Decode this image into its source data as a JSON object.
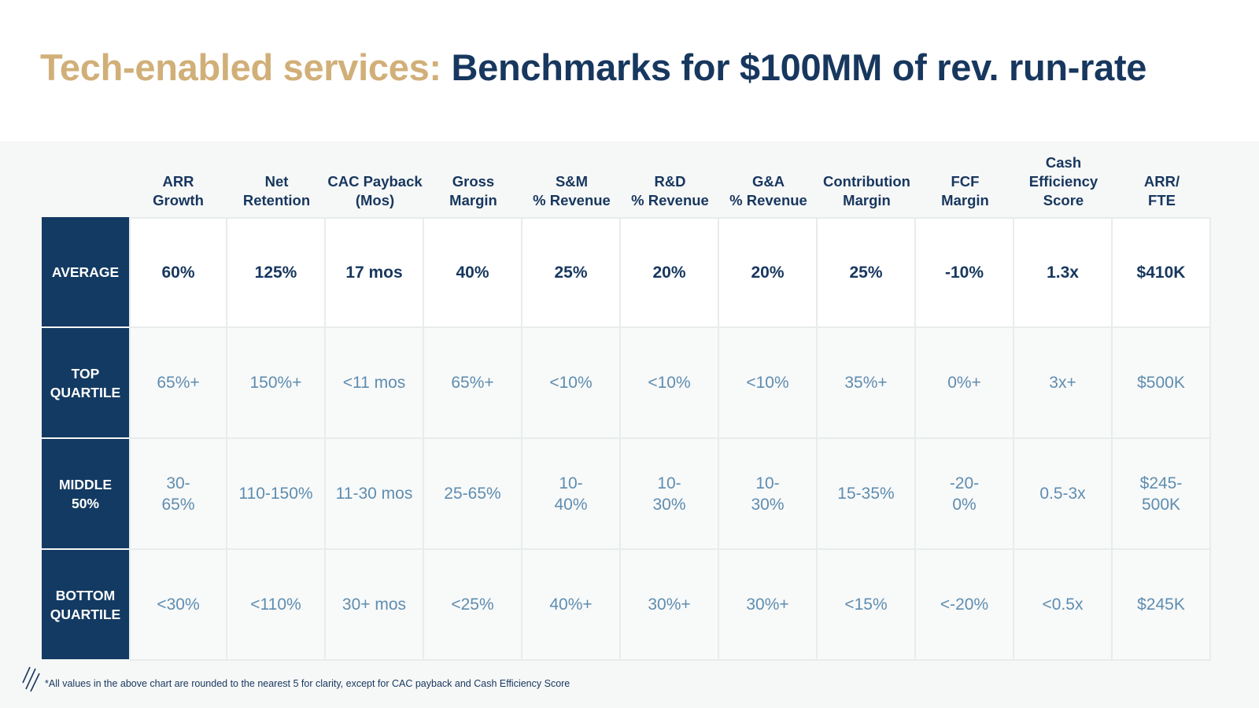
{
  "title": {
    "accent": "Tech-enabled services:",
    "main": "Benchmarks for $100MM of rev. run-rate"
  },
  "columns": [
    "ARR\nGrowth",
    "Net\nRetention",
    "CAC Payback\n(Mos)",
    "Gross\nMargin",
    "S&M\n% Revenue",
    "R&D\n% Revenue",
    "G&A\n% Revenue",
    "Contribution\nMargin",
    "FCF\nMargin",
    "Cash\nEfficiency\nScore",
    "ARR/\nFTE"
  ],
  "rows": [
    {
      "label": "AVERAGE",
      "values": [
        "60%",
        "125%",
        "17 mos",
        "40%",
        "25%",
        "20%",
        "20%",
        "25%",
        "-10%",
        "1.3x",
        "$410K"
      ]
    },
    {
      "label": "TOP\nQUARTILE",
      "values": [
        "65%+",
        "150%+",
        "<11 mos",
        "65%+",
        "<10%",
        "<10%",
        "<10%",
        "35%+",
        "0%+",
        "3x+",
        "$500K"
      ]
    },
    {
      "label": "MIDDLE\n50%",
      "values": [
        "30-\n65%",
        "110-150%",
        "11-30 mos",
        "25-65%",
        "10-\n40%",
        "10-\n30%",
        "10-\n30%",
        "15-35%",
        "-20-\n0%",
        "0.5-3x",
        "$245-\n500K"
      ]
    },
    {
      "label": "BOTTOM\nQUARTILE",
      "values": [
        "<30%",
        "<110%",
        "30+ mos",
        "<25%",
        "40%+",
        "30%+",
        "30%+",
        "<15%",
        "<-20%",
        "<0.5x",
        "$245K"
      ]
    }
  ],
  "footnote": "*All values in the above chart are rounded to the nearest 5 for clarity, except for CAC payback and Cash Efficiency Score",
  "colors": {
    "accent": "#D1AF78",
    "navy": "#17375E",
    "row_label_bg": "#133A62",
    "value_blue": "#5E8DB0"
  },
  "logo_icon": "diagonal-stripes-logo-icon"
}
